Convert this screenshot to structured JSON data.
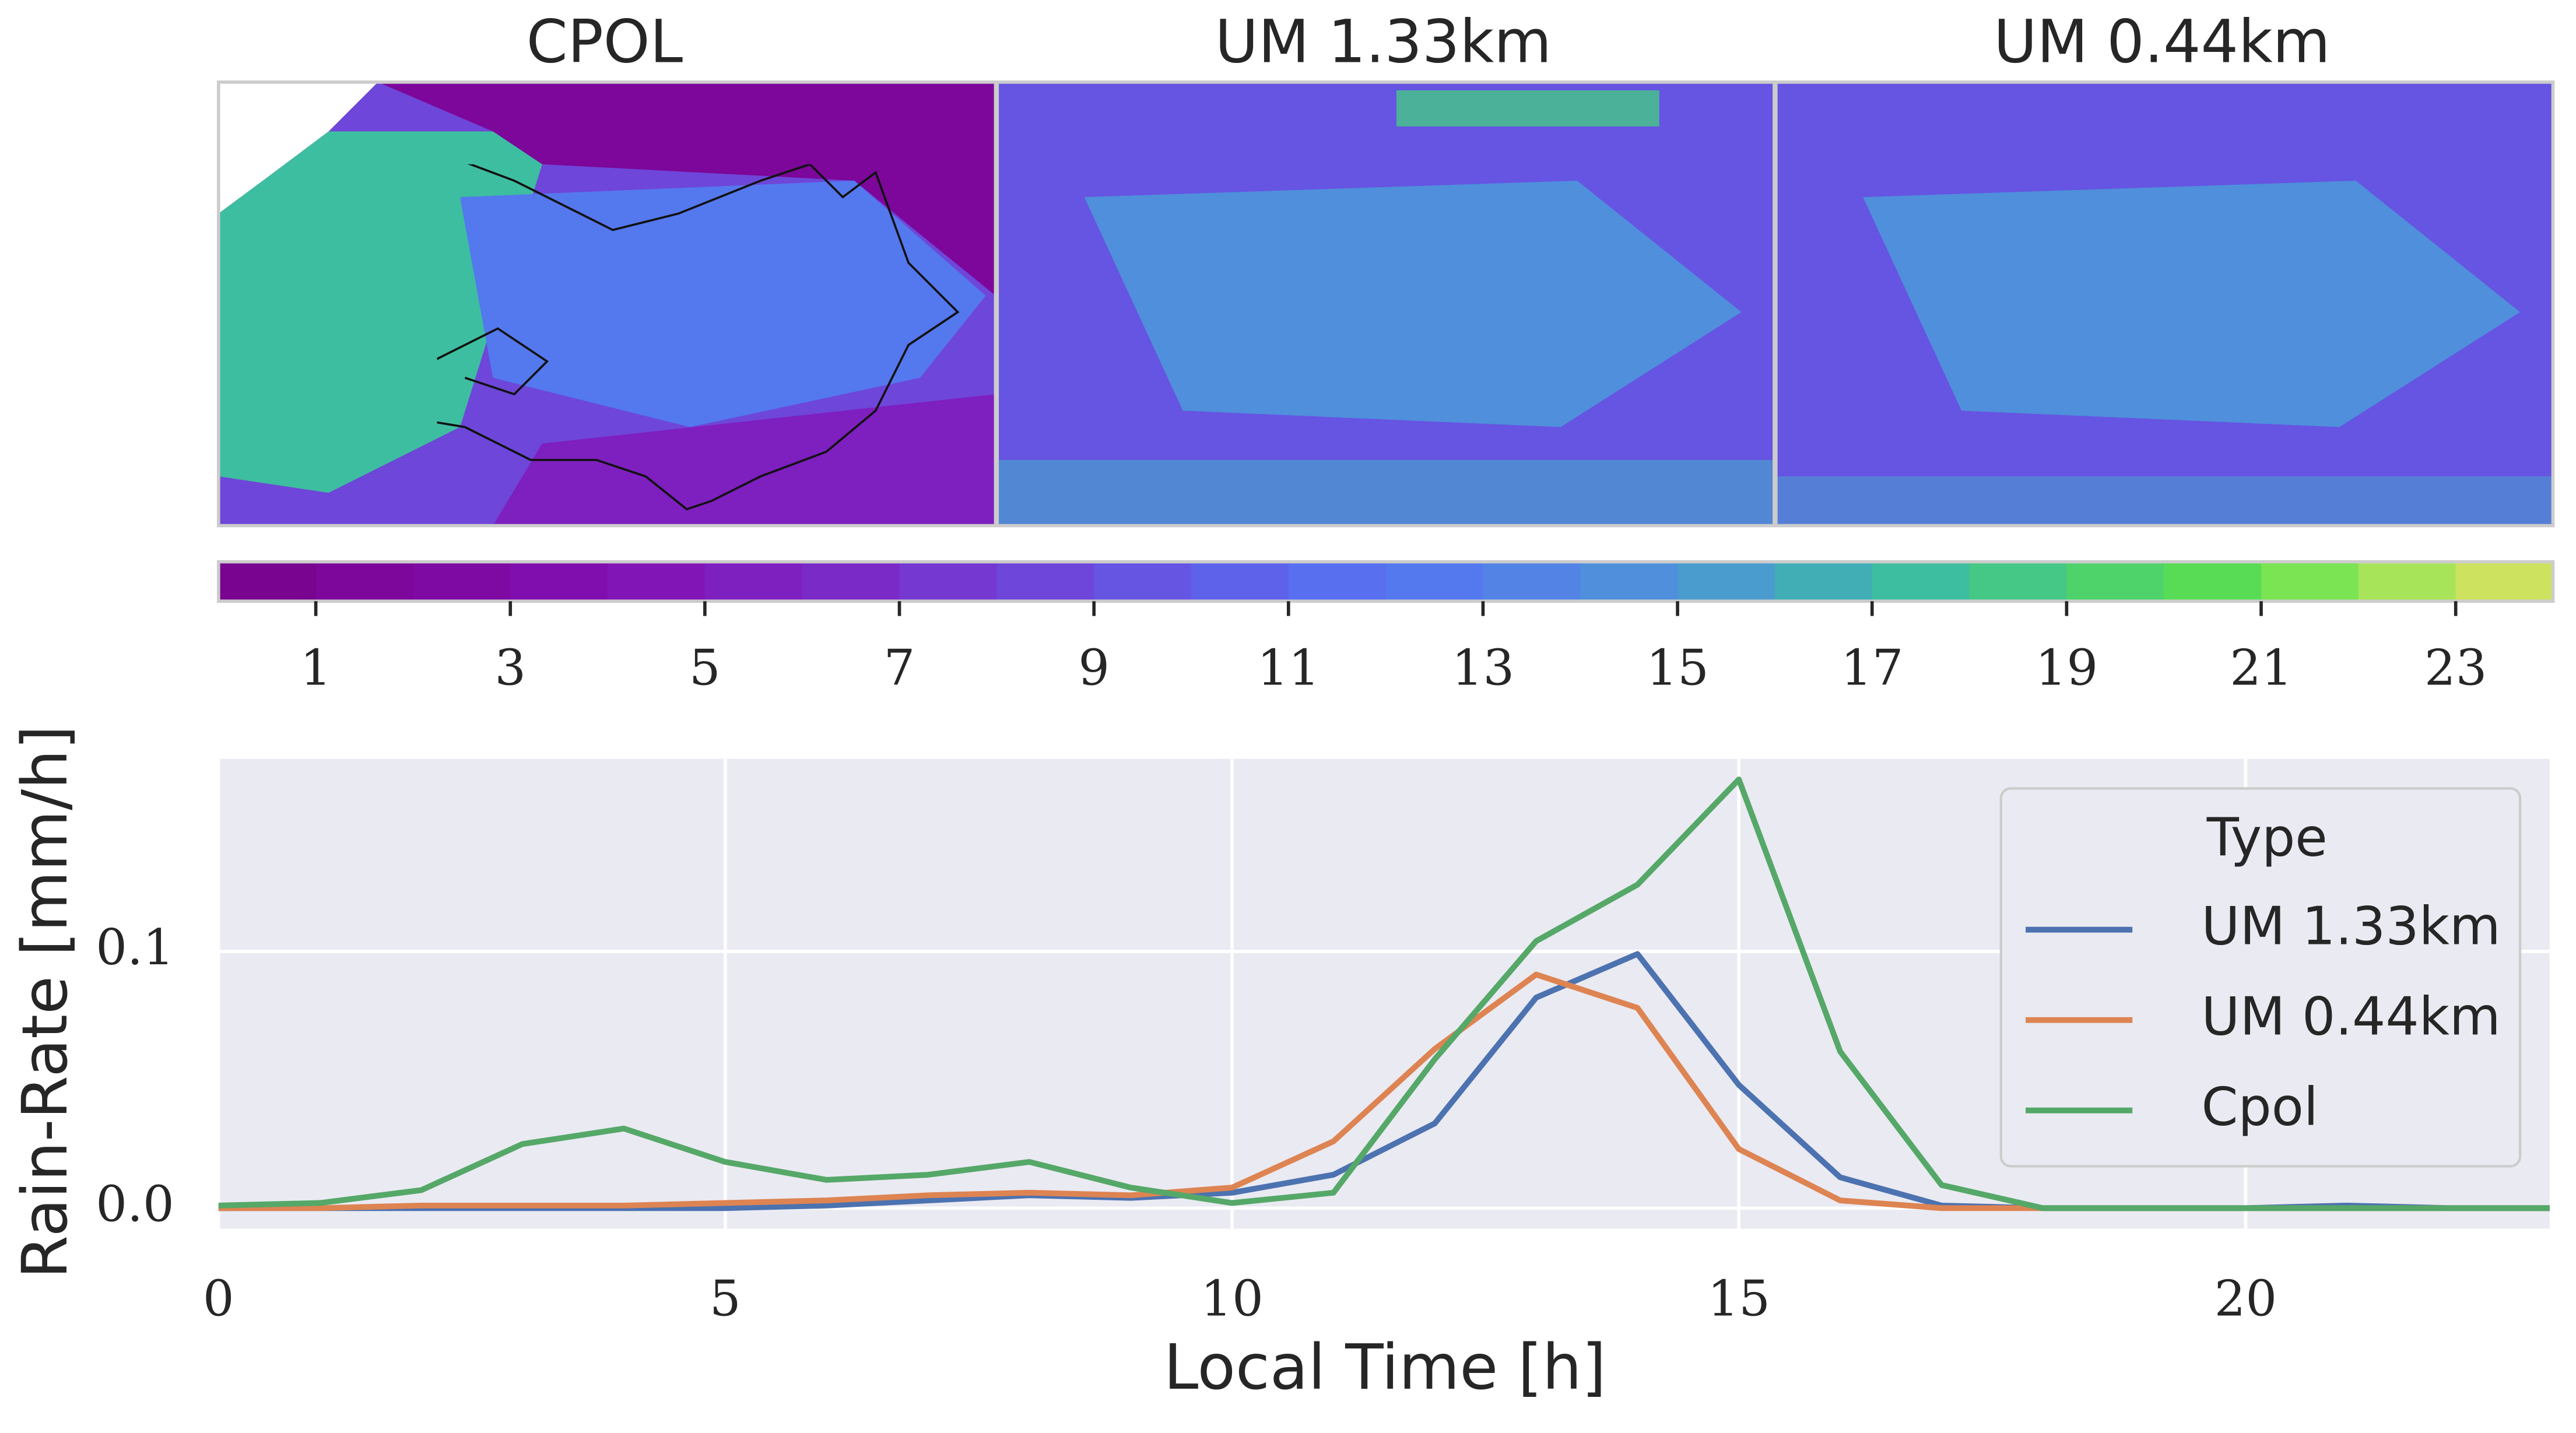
{
  "chart_data": [
    {
      "type": "map",
      "panels": [
        "CPOL",
        "UM 1.33km",
        "UM 0.44km"
      ]
    },
    {
      "type": "colorbar",
      "colors": [
        "#78048f",
        "#7c079a",
        "#7e0aa3",
        "#800eae",
        "#8215b5",
        "#7e1fbf",
        "#7a2ac7",
        "#7538d0",
        "#6e46d9",
        "#6654e2",
        "#5e62ea",
        "#586ff0",
        "#5478ee",
        "#5283e5",
        "#4f8fdc",
        "#4a9ccf",
        "#41aeb6",
        "#3ebea0",
        "#45c886",
        "#4ed36a",
        "#58dc55",
        "#7ae452",
        "#a8e45a",
        "#cde25e"
      ],
      "xlim": [
        0,
        24
      ],
      "xticks": [
        1,
        3,
        5,
        7,
        9,
        11,
        13,
        15,
        17,
        19,
        21,
        23
      ]
    },
    {
      "type": "line",
      "xlabel": "Local Time [h]",
      "ylabel": "Rain-Rate [mm/h]",
      "x": [
        0,
        1,
        2,
        3,
        4,
        5,
        6,
        7,
        8,
        9,
        10,
        11,
        12,
        13,
        14,
        15,
        16,
        17,
        18,
        19,
        20,
        21,
        22,
        23
      ],
      "xlim": [
        0,
        23
      ],
      "xticks": [
        0,
        5,
        10,
        15,
        20
      ],
      "ylim": [
        -0.008,
        0.175
      ],
      "yticks": [
        {
          "value": 0,
          "label": "0.0"
        },
        0.1
      ],
      "grid": true,
      "legend_title": "Type",
      "legend": "upper right",
      "series": [
        {
          "name": "UM 1.33km",
          "color": "#4c72b0",
          "values": [
            0,
            0,
            0,
            0,
            0,
            0,
            0.001,
            0.003,
            0.005,
            0.004,
            0.006,
            0.013,
            0.033,
            0.082,
            0.099,
            0.048,
            0.012,
            0.001,
            0,
            0,
            0,
            0.001,
            0,
            0
          ]
        },
        {
          "name": "UM 0.44km",
          "color": "#dd8452",
          "values": [
            0,
            0,
            0.001,
            0.001,
            0.001,
            0.002,
            0.003,
            0.005,
            0.006,
            0.005,
            0.008,
            0.026,
            0.062,
            0.091,
            0.078,
            0.023,
            0.003,
            0,
            0,
            0,
            0,
            0,
            0,
            0
          ]
        },
        {
          "name": "Cpol",
          "color": "#55a868",
          "values": [
            0.001,
            0.002,
            0.007,
            0.025,
            0.031,
            0.018,
            0.011,
            0.013,
            0.018,
            0.008,
            0.002,
            0.006,
            0.058,
            0.104,
            0.126,
            0.167,
            0.061,
            0.009,
            0,
            0,
            0,
            0,
            0,
            0
          ]
        }
      ]
    }
  ]
}
